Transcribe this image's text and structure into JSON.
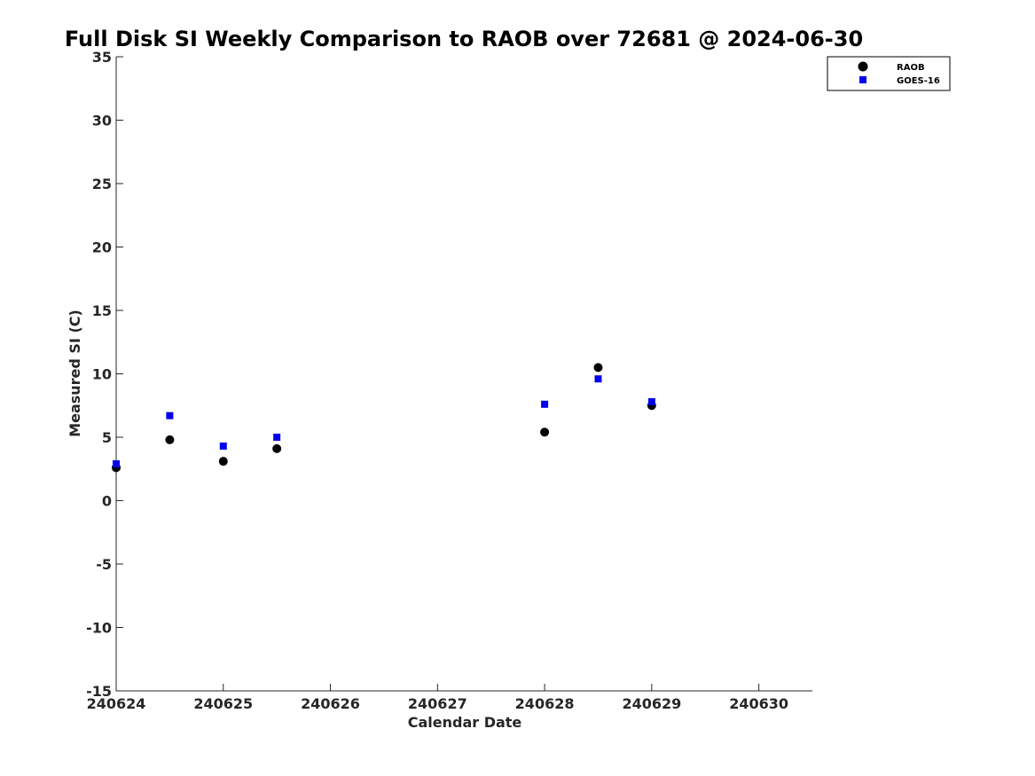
{
  "chart_data": {
    "type": "scatter",
    "title": "Full Disk SI Weekly Comparison to RAOB over 72681 @ 2024-06-30",
    "xlabel": "Calendar Date",
    "ylabel": "Measured SI (C)",
    "xticks": [
      "240624",
      "240625",
      "240626",
      "240627",
      "240628",
      "240629",
      "240630"
    ],
    "xlim": [
      0,
      6.5
    ],
    "ylim": [
      -15,
      35
    ],
    "yticks": [
      -15,
      -10,
      -5,
      0,
      5,
      10,
      15,
      20,
      25,
      30,
      35
    ],
    "grid": false,
    "legend_position": "top-right",
    "series": [
      {
        "name": "RAOB",
        "marker": "circle",
        "color": "#000000",
        "x": [
          0,
          0.5,
          1,
          1.5,
          4,
          4.5,
          5
        ],
        "y": [
          2.6,
          4.8,
          3.1,
          4.1,
          5.4,
          10.5,
          7.5
        ]
      },
      {
        "name": "GOES-16",
        "marker": "square",
        "color": "#0000ee",
        "x": [
          0,
          0.5,
          1,
          1.5,
          4,
          4.5,
          5
        ],
        "y": [
          2.9,
          6.7,
          4.3,
          5.0,
          7.6,
          9.6,
          7.8
        ]
      }
    ]
  }
}
